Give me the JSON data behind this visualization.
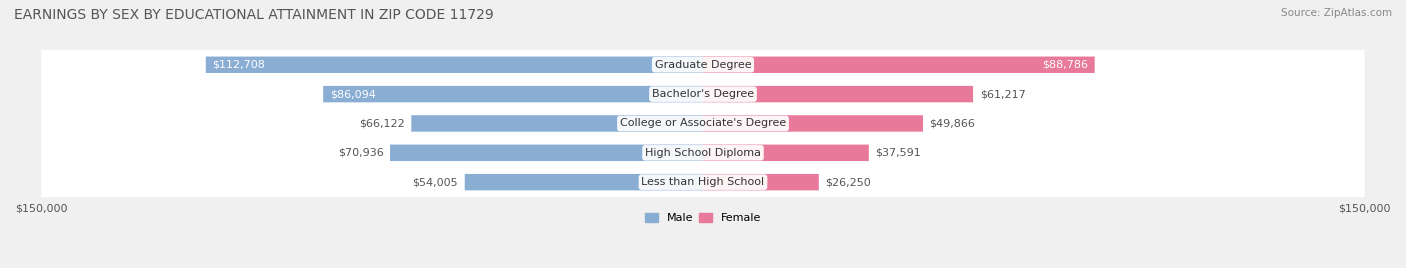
{
  "title": "EARNINGS BY SEX BY EDUCATIONAL ATTAINMENT IN ZIP CODE 11729",
  "source": "Source: ZipAtlas.com",
  "categories": [
    "Less than High School",
    "High School Diploma",
    "College or Associate's Degree",
    "Bachelor's Degree",
    "Graduate Degree"
  ],
  "male_values": [
    54005,
    70936,
    66122,
    86094,
    112708
  ],
  "female_values": [
    26250,
    37591,
    49866,
    61217,
    88786
  ],
  "male_color": "#8aadd4",
  "female_color": "#e8799a",
  "male_label": "Male",
  "female_label": "Female",
  "background_color": "#f0f0f0",
  "bar_bg_color": "#e0e0e0",
  "xlim": 150000,
  "title_fontsize": 10,
  "source_fontsize": 7.5,
  "label_fontsize": 8,
  "tick_fontsize": 8,
  "legend_fontsize": 8
}
